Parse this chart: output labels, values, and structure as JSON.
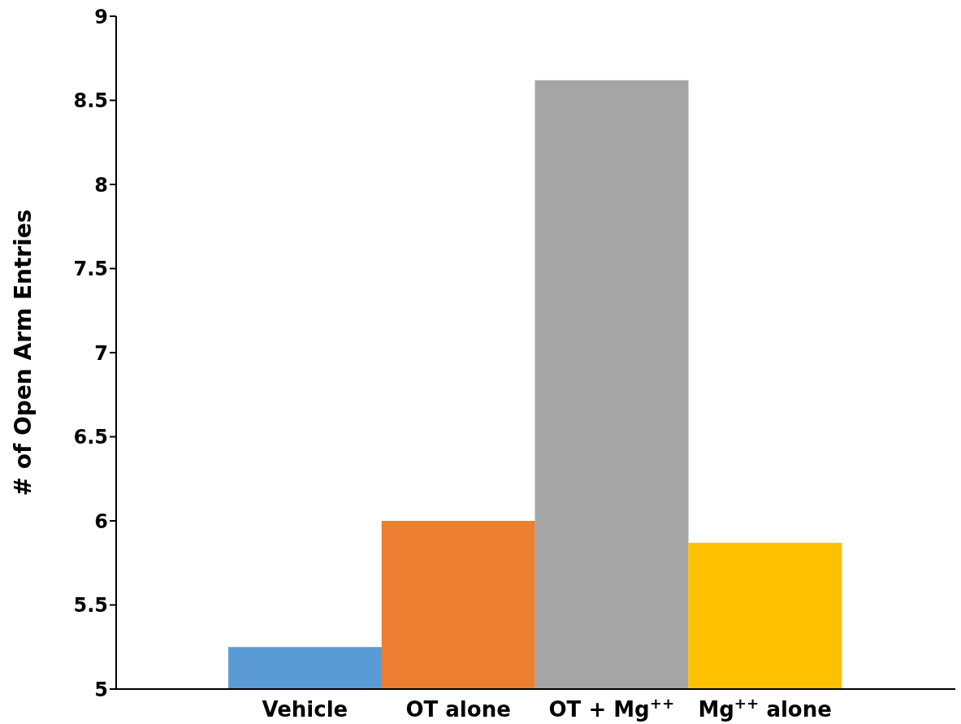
{
  "chart_data": {
    "type": "bar",
    "ylabel": "# of Open Arm Entries",
    "categories": [
      "Vehicle",
      "OT alone",
      "OT + Mg$^{++}$",
      "Mg$^{++}$ alone"
    ],
    "values": [
      5.25,
      6.0,
      8.62,
      5.87
    ],
    "colors": [
      "#5b9bd5",
      "#ed7d31",
      "#a5a5a5",
      "#ffc000"
    ],
    "ylim": [
      5,
      9
    ],
    "yticks": [
      5,
      5.5,
      6,
      6.5,
      7,
      7.5,
      8,
      8.5,
      9
    ],
    "grid": false
  }
}
